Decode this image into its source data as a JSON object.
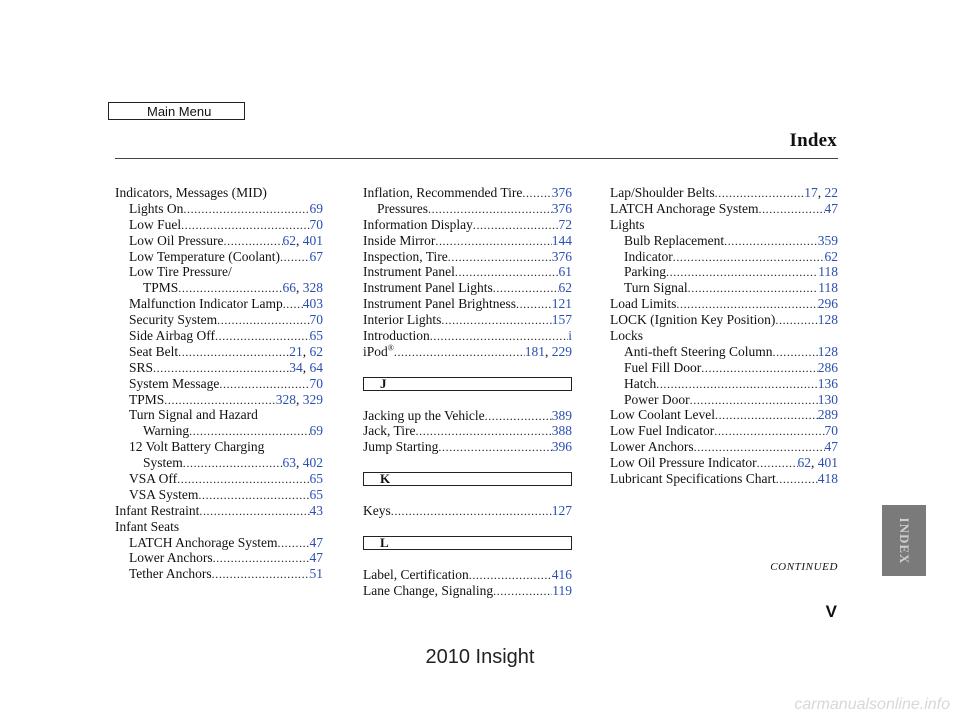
{
  "main_menu_label": "Main Menu",
  "title": "Index",
  "continued": "CONTINUED",
  "side_tab": "INDEX",
  "page_number": "V",
  "footer": "2010 Insight",
  "watermark": "carmanualsonline.info",
  "column1": [
    {
      "label": "Indicators, Messages (MID)",
      "pages": [],
      "level": 0
    },
    {
      "label": "Lights On",
      "pages": [
        "69"
      ],
      "level": 1
    },
    {
      "label": "Low Fuel",
      "pages": [
        "70"
      ],
      "level": 1
    },
    {
      "label": "Low Oil Pressure",
      "pages": [
        "62",
        "401"
      ],
      "level": 1
    },
    {
      "label": "Low Temperature (Coolant)",
      "pages": [
        "67"
      ],
      "level": 1
    },
    {
      "label": "Low Tire Pressure/",
      "pages": [],
      "level": 1
    },
    {
      "label": "TPMS",
      "pages": [
        "66",
        "328"
      ],
      "level": 2
    },
    {
      "label": "Malfunction Indicator Lamp",
      "pages": [
        "403"
      ],
      "level": 1
    },
    {
      "label": "Security System",
      "pages": [
        "70"
      ],
      "level": 1
    },
    {
      "label": "Side Airbag Off",
      "pages": [
        "65"
      ],
      "level": 1
    },
    {
      "label": "Seat Belt",
      "pages": [
        "21",
        "62"
      ],
      "level": 1
    },
    {
      "label": "SRS",
      "pages": [
        "34",
        "64"
      ],
      "level": 1
    },
    {
      "label": "System Message",
      "pages": [
        "70"
      ],
      "level": 1
    },
    {
      "label": "TPMS",
      "pages": [
        "328",
        "329"
      ],
      "level": 1
    },
    {
      "label": "Turn Signal and Hazard",
      "pages": [],
      "level": 1
    },
    {
      "label": "Warning",
      "pages": [
        "69"
      ],
      "level": 2
    },
    {
      "label": "12 Volt Battery Charging",
      "pages": [],
      "level": 1
    },
    {
      "label": "System",
      "pages": [
        "63",
        "402"
      ],
      "level": 2
    },
    {
      "label": "VSA Off",
      "pages": [
        "65"
      ],
      "level": 1
    },
    {
      "label": "VSA System",
      "pages": [
        "65"
      ],
      "level": 1
    },
    {
      "label": "Infant Restraint",
      "pages": [
        "43"
      ],
      "level": 0
    },
    {
      "label": "Infant Seats",
      "pages": [],
      "level": 0
    },
    {
      "label": "LATCH Anchorage System",
      "pages": [
        "47"
      ],
      "level": 1
    },
    {
      "label": "Lower Anchors",
      "pages": [
        "47"
      ],
      "level": 1
    },
    {
      "label": "Tether Anchors",
      "pages": [
        "51"
      ],
      "level": 1
    }
  ],
  "column2_i": [
    {
      "label": "Inflation, Recommended Tire",
      "pages": [
        "376"
      ],
      "level": 0
    },
    {
      "label": "Pressures",
      "pages": [
        "376"
      ],
      "level": 1
    },
    {
      "label": "Information Display",
      "pages": [
        "72"
      ],
      "level": 0
    },
    {
      "label": "Inside Mirror",
      "pages": [
        "144"
      ],
      "level": 0
    },
    {
      "label": "Inspection, Tire",
      "pages": [
        "376"
      ],
      "level": 0
    },
    {
      "label": "Instrument Panel",
      "pages": [
        "61"
      ],
      "level": 0
    },
    {
      "label": "Instrument Panel Lights",
      "pages": [
        "62"
      ],
      "level": 0
    },
    {
      "label": "Instrument Panel Brightness",
      "pages": [
        "121"
      ],
      "level": 0
    },
    {
      "label": "Interior Lights",
      "pages": [
        "157"
      ],
      "level": 0
    },
    {
      "label": "Introduction",
      "pages": [
        "i"
      ],
      "level": 0
    }
  ],
  "ipod": {
    "label": "iPod",
    "sup": "®",
    "pages": [
      "181",
      "229"
    ]
  },
  "letter_j": "J",
  "column2_j": [
    {
      "label": "Jacking up the Vehicle",
      "pages": [
        "389"
      ],
      "level": 0
    },
    {
      "label": "Jack, Tire",
      "pages": [
        "388"
      ],
      "level": 0
    },
    {
      "label": "Jump Starting",
      "pages": [
        "396"
      ],
      "level": 0
    }
  ],
  "letter_k": "K",
  "column2_k": [
    {
      "label": "Keys",
      "pages": [
        "127"
      ],
      "level": 0
    }
  ],
  "letter_l": "L",
  "column2_l": [
    {
      "label": "Label, Certification",
      "pages": [
        "416"
      ],
      "level": 0
    },
    {
      "label": "Lane Change, Signaling",
      "pages": [
        "119"
      ],
      "level": 0
    }
  ],
  "column3": [
    {
      "label": "Lap/Shoulder Belts",
      "pages": [
        "17",
        "22"
      ],
      "level": 0
    },
    {
      "label": "LATCH Anchorage System",
      "pages": [
        "47"
      ],
      "level": 0
    },
    {
      "label": "Lights",
      "pages": [],
      "level": 0
    },
    {
      "label": "Bulb Replacement",
      "pages": [
        "359"
      ],
      "level": 1
    },
    {
      "label": "Indicator",
      "pages": [
        "62"
      ],
      "level": 1
    },
    {
      "label": "Parking",
      "pages": [
        "118"
      ],
      "level": 1
    },
    {
      "label": "Turn Signal",
      "pages": [
        "118"
      ],
      "level": 1
    },
    {
      "label": "Load Limits",
      "pages": [
        "296"
      ],
      "level": 0
    },
    {
      "label": "LOCK (Ignition Key Position)",
      "pages": [
        "128"
      ],
      "level": 0
    },
    {
      "label": "Locks",
      "pages": [],
      "level": 0
    },
    {
      "label": "Anti-theft Steering Column",
      "pages": [
        "128"
      ],
      "level": 1
    },
    {
      "label": "Fuel Fill Door",
      "pages": [
        "286"
      ],
      "level": 1
    },
    {
      "label": "Hatch",
      "pages": [
        "136"
      ],
      "level": 1
    },
    {
      "label": "Power Door",
      "pages": [
        "130"
      ],
      "level": 1
    },
    {
      "label": "Low Coolant Level",
      "pages": [
        "289"
      ],
      "level": 0
    },
    {
      "label": "Low Fuel Indicator",
      "pages": [
        "70"
      ],
      "level": 0
    },
    {
      "label": "Lower Anchors",
      "pages": [
        "47"
      ],
      "level": 0
    },
    {
      "label": "Low Oil Pressure Indicator",
      "pages": [
        "62",
        "401"
      ],
      "level": 0
    },
    {
      "label": "Lubricant Specifications Chart",
      "pages": [
        "418"
      ],
      "level": 0
    }
  ]
}
